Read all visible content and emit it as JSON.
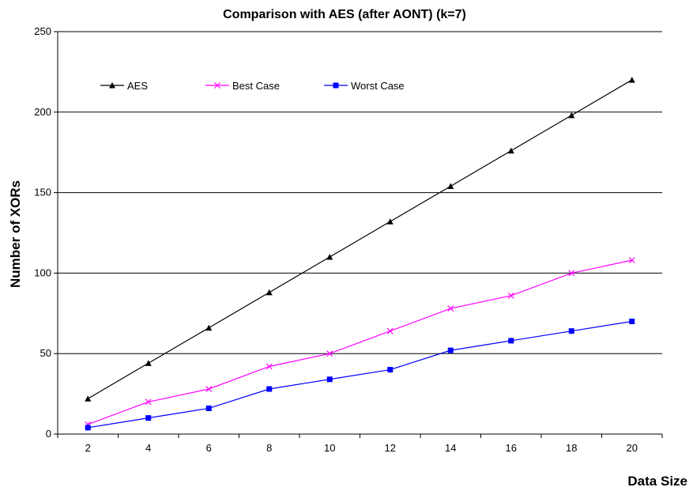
{
  "chart_data": {
    "type": "line",
    "title": "Comparison with AES (after AONT) (k=7)",
    "xlabel": "Data Size",
    "ylabel": "Number of XORs",
    "x": [
      2,
      4,
      6,
      8,
      10,
      12,
      14,
      16,
      18,
      20
    ],
    "ylim": [
      0,
      250
    ],
    "yticks": [
      0,
      50,
      100,
      150,
      200,
      250
    ],
    "grid": "horizontal major gridlines",
    "legend_position": "top-left, inside plot area",
    "series": [
      {
        "name": "AES",
        "color": "#000000",
        "marker": "triangle",
        "values": [
          22,
          44,
          66,
          88,
          110,
          132,
          154,
          176,
          198,
          220
        ]
      },
      {
        "name": "Best Case",
        "color": "#ff00ff",
        "marker": "x",
        "values": [
          6,
          20,
          28,
          42,
          50,
          64,
          78,
          86,
          100,
          108
        ]
      },
      {
        "name": "Worst Case",
        "color": "#0000ff",
        "marker": "square",
        "values": [
          4,
          10,
          16,
          28,
          34,
          40,
          52,
          58,
          64,
          70
        ]
      }
    ]
  }
}
